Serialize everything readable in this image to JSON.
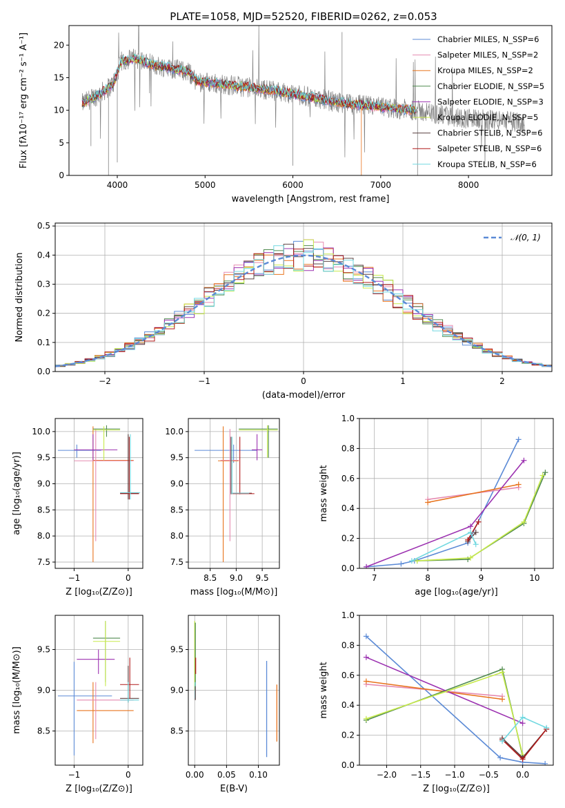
{
  "figure": {
    "title": "PLATE=1058, MJD=52520, FIBERID=0262, z=0.053"
  },
  "colors": {
    "Chabrier MILES": "#5b8ad6",
    "Salpeter MILES": "#e58ab0",
    "Kroupa MILES": "#e8731c",
    "Chabrier ELODIE": "#4f8a4f",
    "Salpeter ELODIE": "#9b30b0",
    "Kroupa ELODIE": "#c7ea4a",
    "Chabrier STELIB": "#5a4040",
    "Salpeter STELIB": "#b01818",
    "Kroupa STELIB": "#70d8e0",
    "data": "#808080",
    "normal": "#5b8ad6"
  },
  "chart_data": [
    {
      "id": "spectrum",
      "type": "line",
      "xlabel": "wavelength [Angstrom, rest frame]",
      "ylabel": "Flux [fλ10⁻¹⁷ erg cm⁻² s⁻¹ A⁻¹]",
      "xlim": [
        3450,
        8950
      ],
      "ylim": [
        0,
        23
      ],
      "xticks": [
        4000,
        5000,
        6000,
        7000,
        8000
      ],
      "yticks": [
        0,
        5,
        10,
        15,
        20
      ],
      "legend": "top-right",
      "legend_entries": [
        "Chabrier MILES, N_SSP=6",
        "Salpeter MILES, N_SSP=2",
        "Kroupa MILES, N_SSP=2",
        "Chabrier ELODIE, N_SSP=5",
        "Salpeter ELODIE, N_SSP=3",
        "Kroupa ELODIE, N_SSP=5",
        "Chabrier STELIB, N_SSP=6",
        "Salpeter STELIB, N_SSP=6",
        "Kroupa STELIB, N_SSP=6"
      ],
      "continuum": [
        [
          3600,
          11
        ],
        [
          3800,
          12.5
        ],
        [
          3950,
          14
        ],
        [
          4050,
          17.5
        ],
        [
          4200,
          18
        ],
        [
          4400,
          17
        ],
        [
          4600,
          16.5
        ],
        [
          4800,
          16
        ],
        [
          4900,
          14.5
        ],
        [
          5200,
          14
        ],
        [
          5500,
          13.5
        ],
        [
          5800,
          13
        ],
        [
          6200,
          12
        ],
        [
          6600,
          11
        ],
        [
          7000,
          10.5
        ],
        [
          7400,
          10
        ],
        [
          7800,
          9
        ],
        [
          8200,
          8.5
        ],
        [
          8400,
          8.5
        ],
        [
          8600,
          8
        ]
      ],
      "model_xmax": 7400
    },
    {
      "id": "residuals",
      "type": "bar",
      "xlabel": "(data-model)/error",
      "ylabel": "Normed distribution",
      "xlim": [
        -2.5,
        2.5
      ],
      "ylim": [
        0,
        0.51
      ],
      "xticks": [
        -2,
        -1,
        0,
        1,
        2
      ],
      "yticks": [
        0.0,
        0.1,
        0.2,
        0.3,
        0.4,
        0.5
      ],
      "legend": "top-right",
      "legend_entries": [
        "𝒩(0, 1)"
      ],
      "bin_width": 0.1
    },
    {
      "id": "z-age",
      "type": "scatter",
      "xlabel": "Z [log₁₀(Z/Z⊙)]",
      "ylabel": "age  [log₁₀(age/yr)]",
      "xlim": [
        -1.35,
        0.27
      ],
      "ylim": [
        7.38,
        10.25
      ],
      "xticks": [
        -1,
        0
      ],
      "yticks": [
        7.5,
        8.0,
        8.5,
        9.0,
        9.5,
        10.0
      ]
    },
    {
      "id": "mass-age",
      "type": "scatter",
      "xlabel": "mass [log₁₀(M/M⊙)]",
      "ylabel": "",
      "xlim": [
        8.08,
        9.83
      ],
      "ylim": [
        7.38,
        10.25
      ],
      "xticks": [
        8.5,
        9.0,
        9.5
      ],
      "yticks": [
        7.5,
        8.0,
        8.5,
        9.0,
        9.5,
        10.0
      ]
    },
    {
      "id": "age-weight",
      "type": "line",
      "xlabel": "age  [log₁₀(age/yr)]",
      "ylabel": "mass weight",
      "xlim": [
        6.72,
        10.35
      ],
      "ylim": [
        0,
        1.0
      ],
      "xticks": [
        7,
        8,
        9,
        10
      ],
      "yticks": [
        0.0,
        0.2,
        0.4,
        0.6,
        0.8,
        1.0
      ],
      "series": [
        {
          "name": "Chabrier MILES",
          "x": [
            6.85,
            7.5,
            7.75,
            8.75,
            9.7
          ],
          "y": [
            0.01,
            0.03,
            0.05,
            0.17,
            0.86
          ]
        },
        {
          "name": "Salpeter MILES",
          "x": [
            8.0,
            9.7
          ],
          "y": [
            0.46,
            0.54
          ]
        },
        {
          "name": "Kroupa MILES",
          "x": [
            8.0,
            9.7
          ],
          "y": [
            0.44,
            0.56
          ]
        },
        {
          "name": "Chabrier ELODIE",
          "x": [
            7.8,
            8.75,
            9.8,
            10.2
          ],
          "y": [
            0.05,
            0.06,
            0.3,
            0.64
          ]
        },
        {
          "name": "Salpeter ELODIE",
          "x": [
            6.85,
            8.8,
            9.8
          ],
          "y": [
            0.01,
            0.28,
            0.72
          ]
        },
        {
          "name": "Kroupa ELODIE",
          "x": [
            7.8,
            8.8,
            9.8,
            10.15
          ],
          "y": [
            0.05,
            0.07,
            0.31,
            0.62
          ]
        },
        {
          "name": "Chabrier STELIB",
          "x": [
            8.75,
            8.9
          ],
          "y": [
            0.18,
            0.24
          ]
        },
        {
          "name": "Salpeter STELIB",
          "x": [
            8.75,
            8.95
          ],
          "y": [
            0.19,
            0.31
          ]
        },
        {
          "name": "Kroupa STELIB",
          "x": [
            7.7,
            8.8,
            8.9
          ],
          "y": [
            0.05,
            0.24,
            0.16
          ]
        }
      ]
    },
    {
      "id": "z-mass",
      "type": "scatter",
      "xlabel": "Z [log₁₀(Z/Z⊙)]",
      "ylabel": "mass [log₁₀(M/M⊙)]",
      "xlim": [
        -1.35,
        0.27
      ],
      "ylim": [
        8.08,
        9.92
      ],
      "xticks": [
        -1,
        0
      ],
      "yticks": [
        8.5,
        9.0,
        9.5
      ]
    },
    {
      "id": "ebv-mass",
      "type": "scatter",
      "xlabel": "E(B-V)",
      "ylabel": "",
      "xlim": [
        -0.01,
        0.133
      ],
      "ylim": [
        8.08,
        9.92
      ],
      "xticks": [
        0.0,
        0.05,
        0.1
      ],
      "xticklabels": [
        "0.00",
        "0.05",
        "0.10"
      ],
      "yticks": [
        8.5,
        9.0,
        9.5
      ]
    },
    {
      "id": "z-weight",
      "type": "line",
      "xlabel": "Z [log₁₀(Z/Z⊙)]",
      "ylabel": "mass weight",
      "xlim": [
        -2.4,
        0.45
      ],
      "ylim": [
        0,
        1.0
      ],
      "xticks": [
        -2.0,
        -1.5,
        -1.0,
        -0.5,
        0.0
      ],
      "yticks": [
        0.0,
        0.2,
        0.4,
        0.6,
        0.8,
        1.0
      ],
      "series": [
        {
          "name": "Chabrier MILES",
          "x": [
            -2.3,
            -0.33,
            0.0,
            0.33
          ],
          "y": [
            0.86,
            0.05,
            0.02,
            0.01
          ]
        },
        {
          "name": "Salpeter MILES",
          "x": [
            -2.3,
            -0.3
          ],
          "y": [
            0.54,
            0.46
          ]
        },
        {
          "name": "Kroupa MILES",
          "x": [
            -2.3,
            -0.3
          ],
          "y": [
            0.56,
            0.44
          ]
        },
        {
          "name": "Chabrier ELODIE",
          "x": [
            -2.3,
            -0.3,
            0.0
          ],
          "y": [
            0.3,
            0.64,
            0.06
          ]
        },
        {
          "name": "Salpeter ELODIE",
          "x": [
            -2.3,
            0.0
          ],
          "y": [
            0.72,
            0.28
          ]
        },
        {
          "name": "Kroupa ELODIE",
          "x": [
            -2.3,
            -0.3,
            0.0
          ],
          "y": [
            0.31,
            0.62,
            0.07
          ]
        },
        {
          "name": "Chabrier STELIB",
          "x": [
            -0.3,
            0.0,
            0.35
          ],
          "y": [
            0.18,
            0.05,
            0.24
          ]
        },
        {
          "name": "Salpeter STELIB",
          "x": [
            -0.3,
            0.0,
            0.35
          ],
          "y": [
            0.17,
            0.04,
            0.24
          ]
        },
        {
          "name": "Kroupa STELIB",
          "x": [
            -0.3,
            0.0,
            0.35
          ],
          "y": [
            0.16,
            0.32,
            0.25
          ]
        }
      ]
    }
  ]
}
